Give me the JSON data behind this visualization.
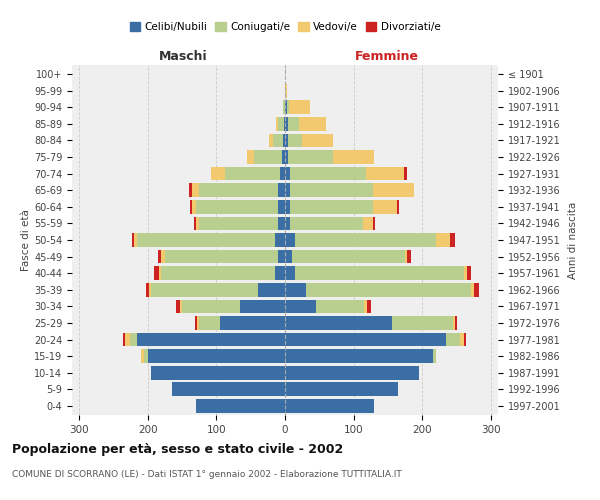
{
  "age_groups": [
    "0-4",
    "5-9",
    "10-14",
    "15-19",
    "20-24",
    "25-29",
    "30-34",
    "35-39",
    "40-44",
    "45-49",
    "50-54",
    "55-59",
    "60-64",
    "65-69",
    "70-74",
    "75-79",
    "80-84",
    "85-89",
    "90-94",
    "95-99",
    "100+"
  ],
  "birth_years": [
    "1997-2001",
    "1992-1996",
    "1987-1991",
    "1982-1986",
    "1977-1981",
    "1972-1976",
    "1967-1971",
    "1962-1966",
    "1957-1961",
    "1952-1956",
    "1947-1951",
    "1942-1946",
    "1937-1941",
    "1932-1936",
    "1927-1931",
    "1922-1926",
    "1917-1921",
    "1912-1916",
    "1907-1911",
    "1902-1906",
    "≤ 1901"
  ],
  "maschi": {
    "celibi": [
      130,
      165,
      195,
      200,
      215,
      95,
      65,
      40,
      15,
      10,
      15,
      10,
      10,
      10,
      8,
      5,
      3,
      2,
      0,
      0,
      0
    ],
    "coniugati": [
      0,
      0,
      0,
      5,
      10,
      30,
      85,
      155,
      165,
      165,
      200,
      115,
      120,
      115,
      80,
      40,
      15,
      8,
      3,
      0,
      0
    ],
    "vedovi": [
      0,
      0,
      0,
      5,
      8,
      3,
      3,
      3,
      3,
      5,
      5,
      5,
      5,
      10,
      20,
      10,
      5,
      3,
      0,
      0,
      0
    ],
    "divorziati": [
      0,
      0,
      0,
      0,
      3,
      3,
      5,
      5,
      8,
      5,
      3,
      3,
      3,
      5,
      0,
      0,
      0,
      0,
      0,
      0,
      0
    ]
  },
  "femmine": {
    "nubili": [
      130,
      165,
      195,
      215,
      235,
      155,
      45,
      30,
      15,
      10,
      15,
      8,
      8,
      8,
      8,
      5,
      5,
      5,
      3,
      0,
      0
    ],
    "coniugate": [
      0,
      0,
      0,
      5,
      20,
      90,
      70,
      240,
      245,
      165,
      205,
      105,
      120,
      120,
      110,
      65,
      20,
      15,
      3,
      0,
      0
    ],
    "vedove": [
      0,
      0,
      0,
      0,
      5,
      3,
      5,
      5,
      5,
      3,
      20,
      15,
      35,
      60,
      55,
      60,
      45,
      40,
      30,
      3,
      0
    ],
    "divorziate": [
      0,
      0,
      0,
      0,
      3,
      3,
      5,
      8,
      5,
      5,
      8,
      3,
      3,
      0,
      5,
      0,
      0,
      0,
      0,
      0,
      0
    ]
  },
  "colors": {
    "celibi": "#3a6ea5",
    "coniugati": "#b8cf8f",
    "vedovi": "#f2c96e",
    "divorziati": "#cc2222"
  },
  "xlim": 310,
  "title": "Popolazione per età, sesso e stato civile - 2002",
  "subtitle": "COMUNE DI SCORRANO (LE) - Dati ISTAT 1° gennaio 2002 - Elaborazione TUTTITALIA.IT",
  "ylabel_left": "Fasce di età",
  "ylabel_right": "Anni di nascita",
  "legend_labels": [
    "Celibi/Nubili",
    "Coniugati/e",
    "Vedovi/e",
    "Divorziati/e"
  ],
  "maschi_label": "Maschi",
  "femmine_label": "Femmine",
  "background_color": "#ffffff",
  "plot_bg_color": "#efefef"
}
